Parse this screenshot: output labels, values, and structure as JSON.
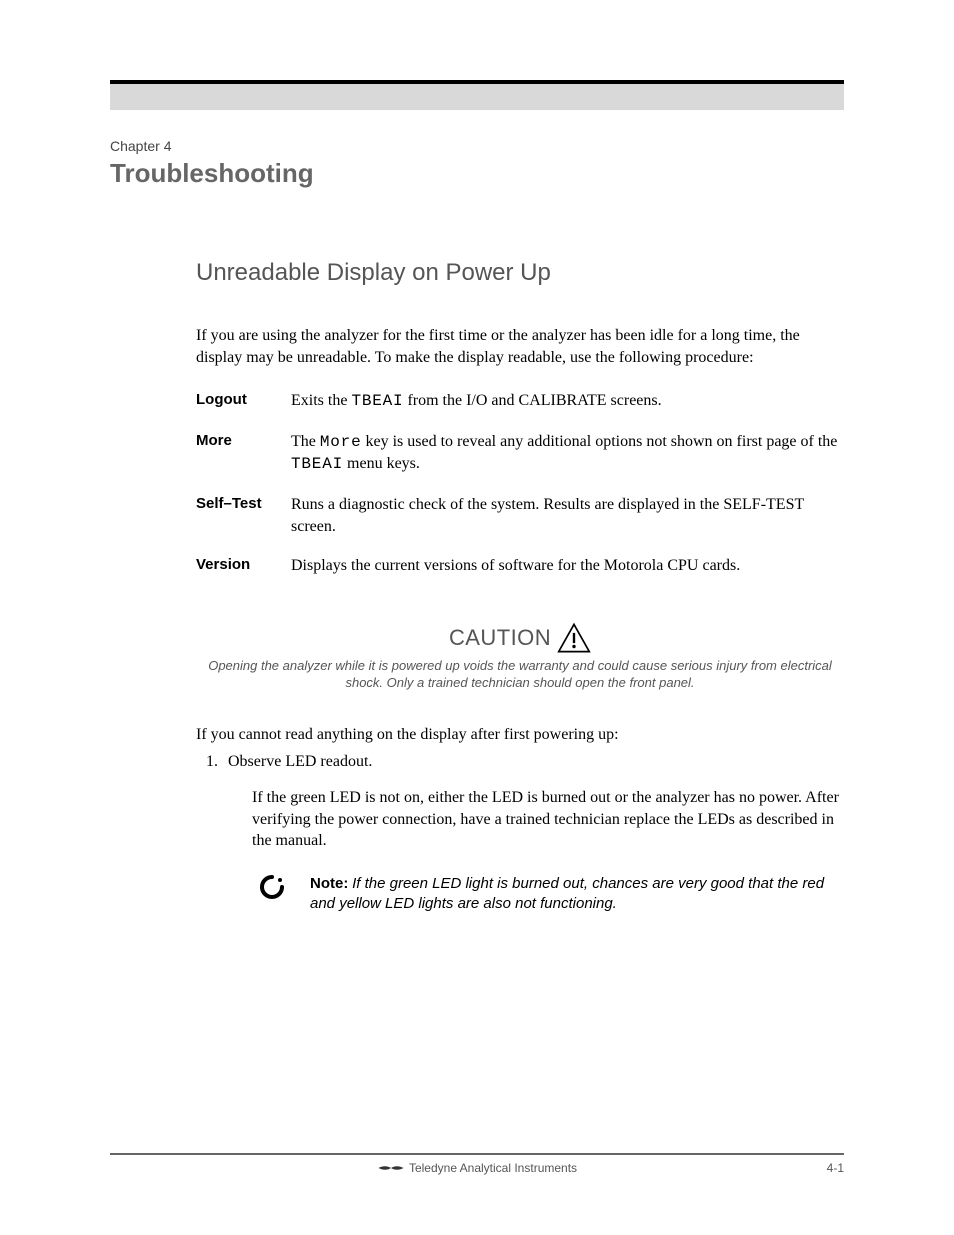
{
  "header": {
    "chapter_label": "Chapter 4",
    "chapter_title": "Troubleshooting",
    "band_bg": "#d9d9d9",
    "header_gray": "#555555"
  },
  "section_unreadable": {
    "title": "Unreadable Display on Power Up",
    "intro": "If you are using the analyzer for the first time or the analyzer has been idle for a long time, the display may be unreadable. To make the display readable, use the following procedure:",
    "menu": [
      {
        "term": "Logout",
        "def_html": "Exits the <span class=\"mono\">TBEAI</span> from the I/O and CALIBRATE screens."
      },
      {
        "term": "More",
        "def_html": "The <span class=\"mono\">More</span> key is used to reveal any additional options not shown on first page of the <span class=\"mono\">TBEAI</span> menu keys."
      },
      {
        "term": "Self–Test",
        "def_html": "Runs a diagnostic check of the system. Results are displayed in the SELF-TEST screen."
      },
      {
        "term": "Version",
        "def_html": "Displays the current versions of software for the Motorola CPU cards."
      }
    ]
  },
  "caution": {
    "word": "CAUTION",
    "text": "Opening the analyzer while it is powered up voids the warranty and could cause serious injury from electrical shock. Only a trained technician should open the front panel.",
    "icon_color": "#000000",
    "text_color": "#555555"
  },
  "section_unreadable2": {
    "lead": "If you cannot read anything on the display after first powering up:",
    "steps": [
      "Observe LED readout."
    ],
    "after_step": "If the green LED is not on, either the LED is burned out or the analyzer has no power. After verifying the power connection, have a trained technician replace the LEDs as described in the manual.",
    "note": {
      "label": "Note:",
      "text": "If the green LED light is burned out, chances are very good that the red and yellow LED lights are also not functioning."
    }
  },
  "footer": {
    "brand": "Teledyne Analytical Instruments",
    "page": "4-1"
  }
}
